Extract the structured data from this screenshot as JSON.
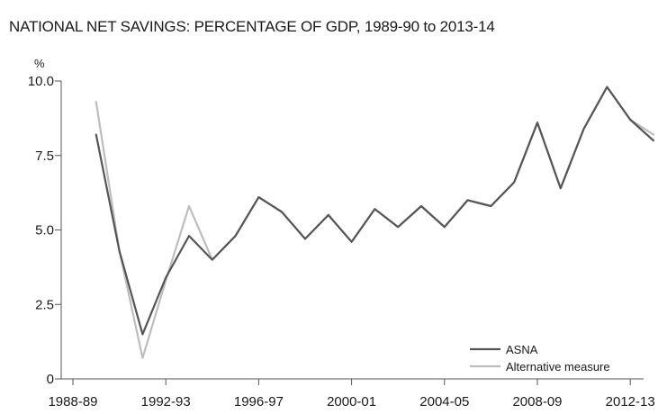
{
  "chart_data": {
    "type": "line",
    "title": "NATIONAL NET SAVINGS: PERCENTAGE OF GDP, 1989-90 to 2013-14",
    "ylabel": "%",
    "xlabel": "",
    "ylim": [
      0,
      10
    ],
    "yticks": [
      "0",
      "2.5",
      "5.0",
      "7.5",
      "10.0"
    ],
    "yticks_values": [
      0,
      2.5,
      5,
      7.5,
      10
    ],
    "xtick_labels": [
      "1988-89",
      "1992-93",
      "1996-97",
      "2000-01",
      "2004-05",
      "2008-09",
      "2012-13"
    ],
    "xtick_indices": [
      0,
      4,
      8,
      12,
      16,
      20,
      24
    ],
    "x": [
      "1989-90",
      "1990-91",
      "1991-92",
      "1992-93",
      "1993-94",
      "1994-95",
      "1995-96",
      "1996-97",
      "1997-98",
      "1998-99",
      "1999-00",
      "2000-01",
      "2001-02",
      "2002-03",
      "2003-04",
      "2004-05",
      "2005-06",
      "2006-07",
      "2007-08",
      "2008-09",
      "2009-10",
      "2010-11",
      "2011-12",
      "2012-13",
      "2013-14"
    ],
    "x_indices": [
      1,
      2,
      3,
      4,
      5,
      6,
      7,
      8,
      9,
      10,
      11,
      12,
      13,
      14,
      15,
      16,
      17,
      18,
      19,
      20,
      21,
      22,
      23,
      24,
      25
    ],
    "series": [
      {
        "name": "ASNA",
        "color": "#555555",
        "values": [
          8.2,
          4.3,
          1.5,
          3.4,
          4.8,
          4.0,
          4.8,
          6.1,
          5.6,
          4.7,
          5.5,
          4.6,
          5.7,
          5.1,
          5.8,
          5.1,
          6.0,
          5.8,
          6.6,
          8.6,
          6.4,
          8.4,
          9.8,
          8.7,
          8.0
        ]
      },
      {
        "name": "Alternative measure",
        "color": "#bdbdbd",
        "values": [
          9.3,
          4.3,
          0.7,
          3.3,
          5.8,
          4.0,
          4.8,
          6.1,
          5.6,
          4.7,
          5.5,
          4.6,
          5.7,
          5.1,
          5.8,
          5.1,
          6.0,
          5.8,
          6.6,
          8.6,
          6.4,
          8.4,
          9.8,
          8.7,
          8.2
        ]
      }
    ],
    "legend_position": "bottom-right",
    "grid": false
  }
}
